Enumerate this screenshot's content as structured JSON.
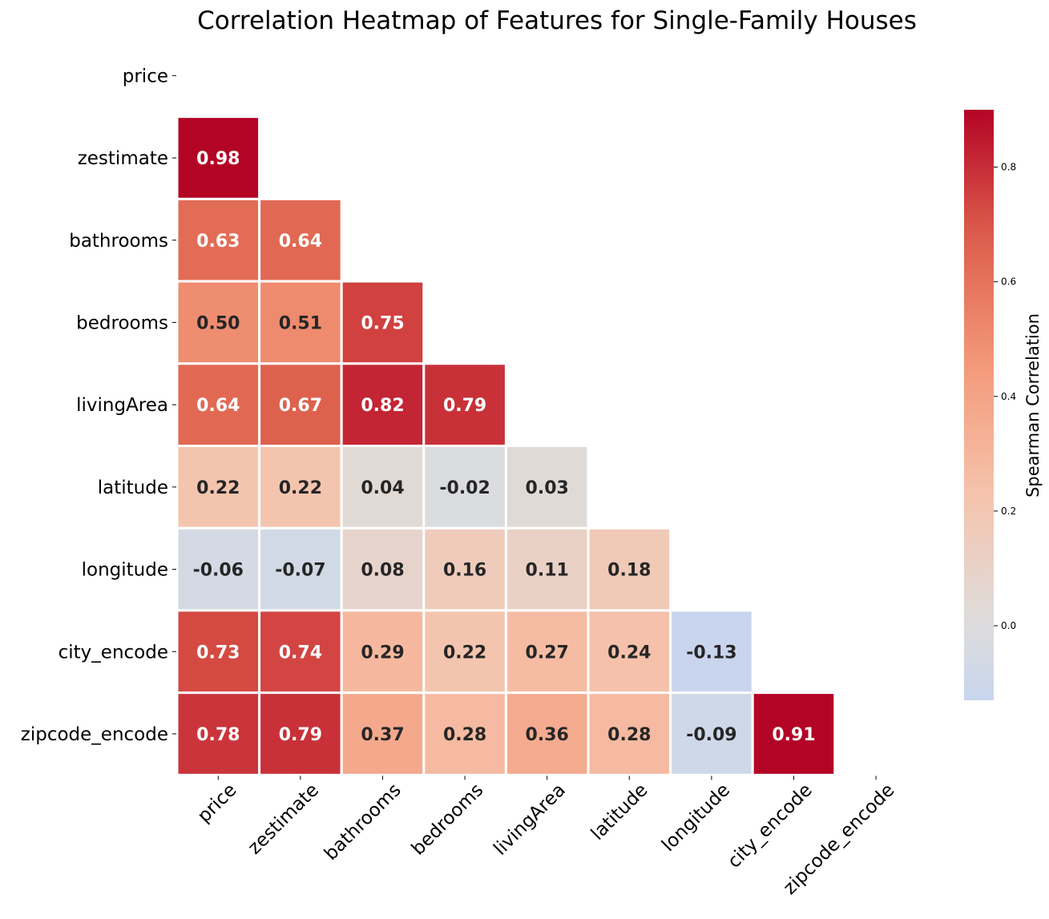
{
  "chart_data": {
    "type": "heatmap",
    "title": "Correlation Heatmap of Features for Single-Family Houses",
    "labels": [
      "price",
      "zestimate",
      "bathrooms",
      "bedrooms",
      "livingArea",
      "latitude",
      "longitude",
      "city_encode",
      "zipcode_encode"
    ],
    "matrix": [
      [
        null,
        null,
        null,
        null,
        null,
        null,
        null,
        null,
        null
      ],
      [
        0.98,
        null,
        null,
        null,
        null,
        null,
        null,
        null,
        null
      ],
      [
        0.63,
        0.64,
        null,
        null,
        null,
        null,
        null,
        null,
        null
      ],
      [
        0.5,
        0.51,
        0.75,
        null,
        null,
        null,
        null,
        null,
        null
      ],
      [
        0.64,
        0.67,
        0.82,
        0.79,
        null,
        null,
        null,
        null,
        null
      ],
      [
        0.22,
        0.22,
        0.04,
        -0.02,
        0.03,
        null,
        null,
        null,
        null
      ],
      [
        -0.06,
        -0.07,
        0.08,
        0.16,
        0.11,
        0.18,
        null,
        null,
        null
      ],
      [
        0.73,
        0.74,
        0.29,
        0.22,
        0.27,
        0.24,
        -0.13,
        null,
        null
      ],
      [
        0.78,
        0.79,
        0.37,
        0.28,
        0.36,
        0.28,
        -0.09,
        0.91,
        null
      ]
    ],
    "mask": "upper-triangle-including-diagonal",
    "colormap": "coolwarm",
    "center": 0,
    "vmin": -0.13,
    "vmax": 0.9,
    "colorbar": {
      "label": "Spearman Correlation",
      "ticks": [
        0.0,
        0.2,
        0.4,
        0.6,
        0.8
      ],
      "tick_labels": [
        "0.0",
        "0.2",
        "0.4",
        "0.6",
        "0.8"
      ]
    },
    "annotation_format": "0.00"
  }
}
